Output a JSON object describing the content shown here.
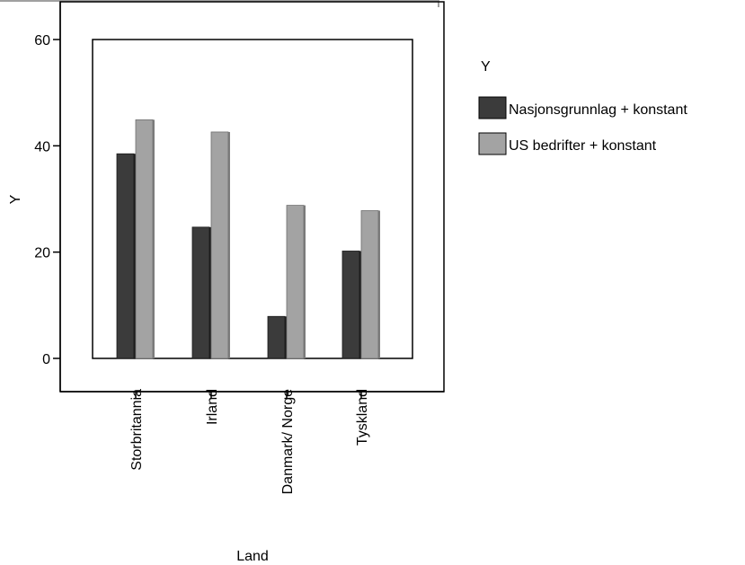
{
  "chart_data": {
    "type": "bar",
    "title": "",
    "xlabel": "Land",
    "ylabel": "Y",
    "ylim": [
      0,
      60
    ],
    "yticks": [
      0,
      20,
      40,
      60
    ],
    "categories": [
      "Storbritannia",
      "Irland",
      "Danmark/ Norge",
      "Tyskland"
    ],
    "series": [
      {
        "name": "Nasjonsgrunnlag + konstant",
        "color": "#3b3b3b",
        "values": [
          38.5,
          24.7,
          7.9,
          20.2
        ]
      },
      {
        "name": "US bedrifter + konstant",
        "color": "#a3a3a3",
        "values": [
          44.9,
          42.6,
          28.8,
          27.8
        ]
      }
    ],
    "legend": {
      "title": "Y",
      "position": "right"
    },
    "grid": false
  }
}
